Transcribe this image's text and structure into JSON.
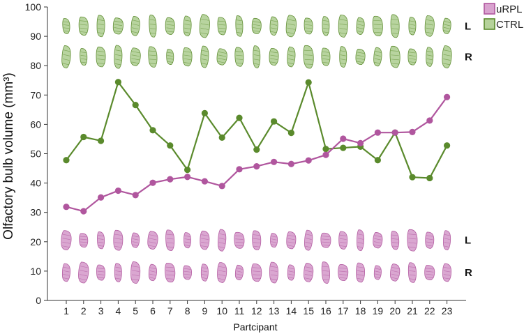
{
  "chart_data": {
    "type": "line",
    "title": "",
    "xlabel": "Partcipant",
    "ylabel": "Olfactory bulb volume (mm³)",
    "ylim": [
      0,
      100
    ],
    "yticks": [
      0,
      10,
      20,
      30,
      40,
      50,
      60,
      70,
      80,
      90,
      100
    ],
    "x": [
      "1",
      "2",
      "3",
      "4",
      "5",
      "6",
      "7",
      "8",
      "9",
      "10",
      "11",
      "12",
      "13",
      "14",
      "15",
      "16",
      "17",
      "18",
      "19",
      "20",
      "21",
      "22",
      "23"
    ],
    "legend_position": "top-right",
    "series": [
      {
        "name": "uRPL",
        "color": "#b0569e",
        "fill": "#d9a3cf",
        "values": [
          31.9,
          30.4,
          35.1,
          37.4,
          35.9,
          40.1,
          41.3,
          42.1,
          40.6,
          39.0,
          44.7,
          45.7,
          47.2,
          46.5,
          47.7,
          49.6,
          55.1,
          53.6,
          57.2,
          57.2,
          57.4,
          61.3,
          69.3
        ]
      },
      {
        "name": "CTRL",
        "color": "#5a8a2c",
        "fill": "#b5d29a",
        "values": [
          47.8,
          55.7,
          54.4,
          74.4,
          66.6,
          58.0,
          52.8,
          44.5,
          63.8,
          55.5,
          62.2,
          51.4,
          61.0,
          57.1,
          74.3,
          51.6,
          52.0,
          52.4,
          47.8,
          57.2,
          42.0,
          41.7,
          52.8
        ]
      }
    ],
    "bulb_rows": [
      {
        "group": "CTRL",
        "side": "L"
      },
      {
        "group": "CTRL",
        "side": "R"
      },
      {
        "group": "uRPL",
        "side": "L"
      },
      {
        "group": "uRPL",
        "side": "R"
      }
    ]
  }
}
